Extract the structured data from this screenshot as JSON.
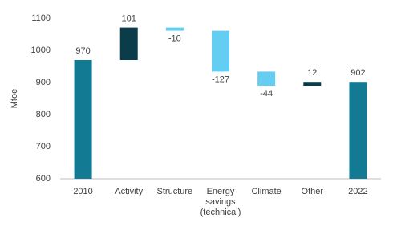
{
  "chart_data": {
    "type": "waterfall",
    "y_label": "Mtoe",
    "categories": [
      "2010",
      "Activity",
      "Structure",
      "Energy savings (technical)",
      "Climate",
      "Other",
      "2022"
    ],
    "values": [
      970,
      101,
      -10,
      -127,
      -44,
      12,
      902
    ],
    "measure": [
      "absolute",
      "relative",
      "relative",
      "relative",
      "relative",
      "relative",
      "absolute"
    ],
    "colors": {
      "absolute": "#137a94",
      "increase": "#0b3c49",
      "decrease": "#63cdf2"
    },
    "ylim": [
      600,
      1100
    ],
    "yticks": [
      600,
      700,
      800,
      900,
      1000,
      1100
    ],
    "grid": false
  }
}
